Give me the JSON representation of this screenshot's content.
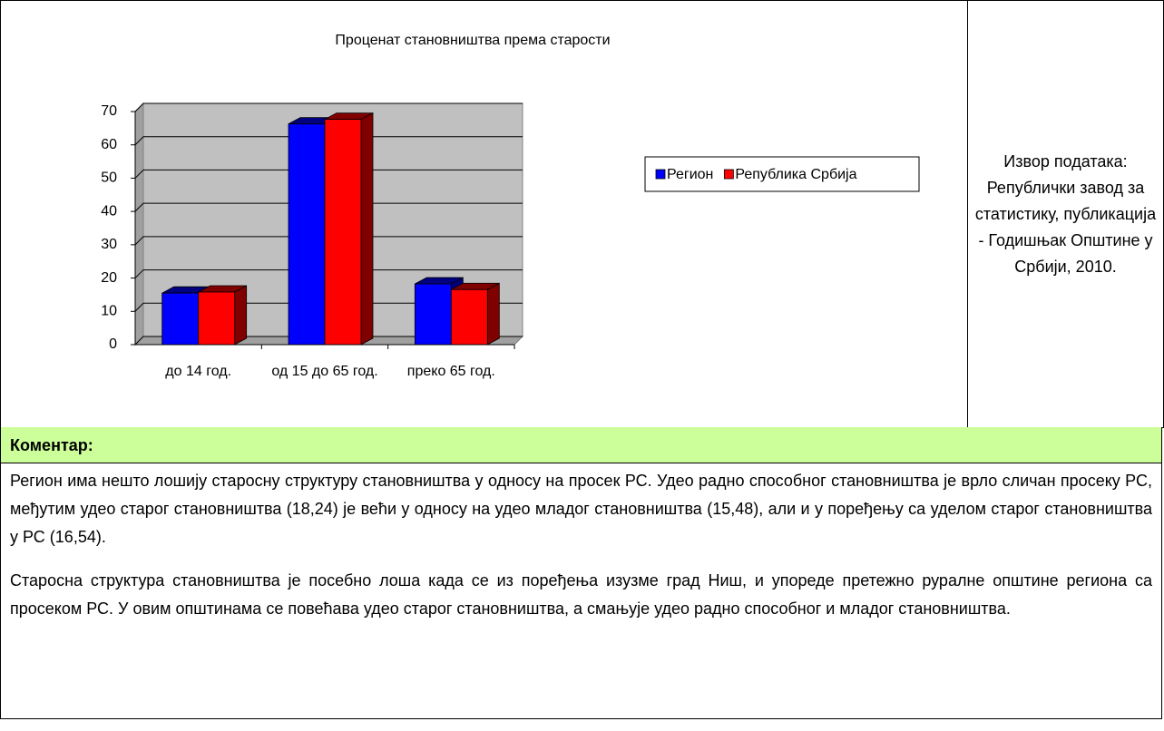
{
  "chart_data": {
    "type": "bar",
    "title": "Проценат становништва према старости",
    "categories": [
      "до 14 год.",
      "од 15 до 65 год.",
      "преко 65 год."
    ],
    "series": [
      {
        "name": "Регион",
        "color": "#0000ff",
        "values": [
          15.48,
          66.28,
          18.24
        ]
      },
      {
        "name": "Република Србија",
        "color": "#ff0000",
        "values": [
          15.8,
          67.66,
          16.54
        ]
      }
    ],
    "ylim": [
      0,
      70
    ],
    "yticks": [
      0,
      10,
      20,
      30,
      40,
      50,
      60,
      70
    ],
    "grid": true,
    "legend": "right"
  },
  "source": "Извор података: Републички завод за статистику, публикација - Годишњак Општине у Србији, 2010.",
  "comment": {
    "heading": "Коментар:",
    "paragraphs": [
      "Регион има нешто лошију старосну структуру становништва у односу на просек РС. Удео радно способног становништва је врло сличан просеку РС, међутим удео старог становништва (18,24) је већи у односу на удео младог становништва (15,48), али и у поређењу са уделом старог становништва у РС (16,54).",
      "Старосна структура становништва је посебно лоша када се из поређења изузме град Ниш, и упореде претежно руралне општине региона са просеком РС. У овим општинама се повећава удео старог становништва, а смањује удео радно способног и младог становништва."
    ]
  }
}
